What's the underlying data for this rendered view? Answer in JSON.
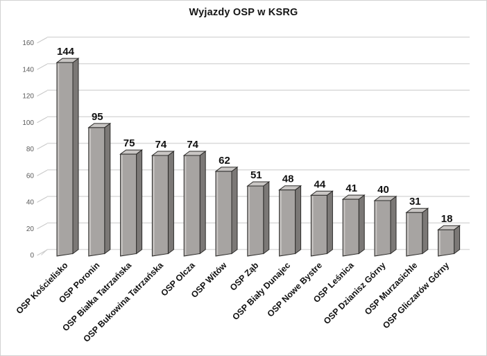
{
  "chart_data": {
    "type": "bar",
    "style": "3d-column",
    "title": "Wyjazdy OSP w KSRG",
    "categories": [
      "OSP Kościelisko",
      "OSP Poronin",
      "OSP Białka Tatrzańska",
      "OSP Bukowina Tatrzańska",
      "OSP Olcza",
      "OSP Witów",
      "OSP Ząb",
      "OSP Biały Dunajec",
      "OSP Nowe Bystre",
      "OSP Leśnica",
      "OSP Dzianisz Górny",
      "OSP Murzasichle",
      "OSP Gliczarów Górny"
    ],
    "values": [
      144,
      95,
      75,
      74,
      74,
      62,
      51,
      48,
      44,
      41,
      40,
      31,
      18
    ],
    "data_labels": [
      "144",
      "95",
      "75",
      "74",
      "74",
      "62",
      "51",
      "48",
      "44",
      "41",
      "40",
      "31",
      "18"
    ],
    "xlabel": "",
    "ylabel": "",
    "ylim": [
      0,
      160
    ],
    "ytick_step": 20,
    "yticks": [
      "0",
      "20",
      "40",
      "60",
      "80",
      "100",
      "120",
      "140",
      "160"
    ],
    "grid": "horizontal",
    "legend": "none",
    "colors": {
      "background": "#ffffff",
      "frame_border": "#d2d2d2",
      "gridline": "#dadada",
      "tick_label": "#595959",
      "title": "#141414",
      "data_label": "#111111",
      "category_label": "#111111",
      "bar_front": "#a7a4a2",
      "bar_side": "#7b7876",
      "bar_top": "#c9c6c4",
      "bar_highlight": "#c7c4c2",
      "bar_outline": "#2b2a28"
    }
  }
}
